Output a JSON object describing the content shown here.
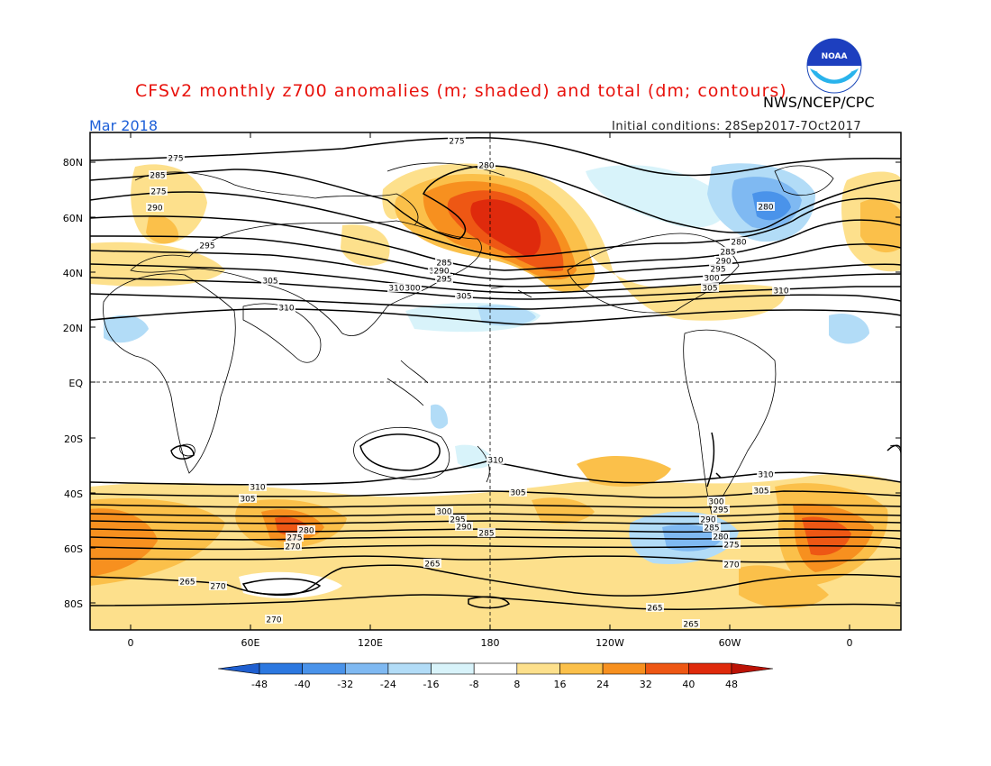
{
  "header": {
    "title": "CFSv2 monthly z700 anomalies (m; shaded) and total (dm; contours)",
    "agency": "NWS/NCEP/CPC",
    "month": "Mar 2018",
    "initial_conditions": "Initial conditions: 28Sep2017-7Oct2017"
  },
  "logo": {
    "icon": "noaa-logo-icon",
    "text": "NOAA"
  },
  "axes": {
    "lat_labels": [
      "80N",
      "60N",
      "40N",
      "20N",
      "EQ",
      "20S",
      "40S",
      "60S",
      "80S"
    ],
    "lon_labels": [
      "0",
      "60E",
      "120E",
      "180",
      "120W",
      "60W",
      "0"
    ]
  },
  "colorbar": {
    "levels": [
      "-48",
      "-40",
      "-32",
      "-24",
      "-16",
      "-8",
      "8",
      "16",
      "24",
      "32",
      "40",
      "48"
    ],
    "colors": [
      "#1f5fd0",
      "#2c78e0",
      "#4a93ea",
      "#7fb9f2",
      "#b2dcf7",
      "#d8f3fa",
      "#ffffff",
      "#fde08c",
      "#fbc04a",
      "#f7901f",
      "#ee5714",
      "#df2a0c",
      "#bb1306"
    ]
  },
  "contour_labels": {
    "north": [
      "275",
      "275",
      "280",
      "280",
      "285",
      "290",
      "295",
      "300",
      "305",
      "310",
      "310",
      "275",
      "280",
      "285",
      "290",
      "295",
      "300",
      "305",
      "310",
      "285",
      "290",
      "295",
      "300",
      "305"
    ],
    "south": [
      "310",
      "305",
      "300",
      "295",
      "290",
      "285",
      "280",
      "275",
      "270",
      "265",
      "265",
      "270",
      "270",
      "265",
      "265",
      "310",
      "305",
      "300",
      "295",
      "290",
      "285",
      "280",
      "275",
      "270",
      "310",
      "305"
    ]
  },
  "colors": {
    "title": "#e8120c",
    "month": "#1d5fd8"
  }
}
